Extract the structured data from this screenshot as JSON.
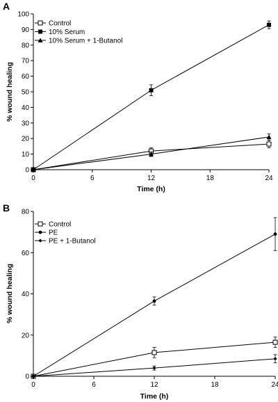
{
  "chart_data": [
    {
      "type": "line",
      "panel_label": "A",
      "xlabel": "Time (h)",
      "ylabel": "% wound healing",
      "xlim": [
        0,
        24
      ],
      "ylim": [
        0,
        100
      ],
      "xticks": [
        0,
        6,
        12,
        18,
        24
      ],
      "yticks": [
        0,
        10,
        20,
        30,
        40,
        50,
        60,
        70,
        80,
        90,
        100
      ],
      "x": [
        0,
        12,
        24
      ],
      "legend_position": "top-left",
      "grid": false,
      "series": [
        {
          "name": "Control",
          "marker": "open-square",
          "values": [
            0,
            12,
            16.5
          ],
          "errors": [
            0,
            2,
            2.5
          ]
        },
        {
          "name": "10% Serum",
          "marker": "filled-square",
          "values": [
            0,
            51,
            93
          ],
          "errors": [
            0,
            3.5,
            2.5
          ]
        },
        {
          "name": "10% Serum + 1-Butanol",
          "marker": "filled-triangle",
          "values": [
            0,
            10,
            21
          ],
          "errors": [
            0,
            1.5,
            2
          ]
        }
      ]
    },
    {
      "type": "line",
      "panel_label": "B",
      "xlabel": "Time (h)",
      "ylabel": "% wound healing",
      "xlim": [
        0,
        24
      ],
      "ylim": [
        0,
        80
      ],
      "xticks": [
        0,
        6,
        12,
        18,
        24
      ],
      "yticks": [
        0,
        20,
        40,
        60,
        80
      ],
      "x": [
        0,
        12,
        24
      ],
      "legend_position": "top-left",
      "grid": false,
      "series": [
        {
          "name": "Control",
          "marker": "open-square",
          "values": [
            0,
            11.5,
            16.5
          ],
          "errors": [
            0,
            2.5,
            2.5
          ]
        },
        {
          "name": "PE",
          "marker": "filled-circle",
          "values": [
            0,
            36.5,
            69
          ],
          "errors": [
            0,
            2,
            8
          ]
        },
        {
          "name": "PE + 1-Butanol",
          "marker": "filled-diamond",
          "values": [
            0,
            4,
            8.5
          ],
          "errors": [
            0,
            1,
            2
          ]
        }
      ]
    }
  ]
}
